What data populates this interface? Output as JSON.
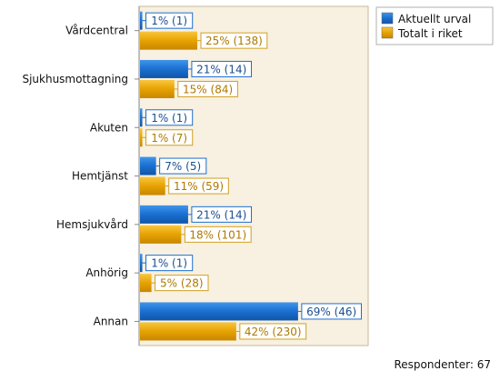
{
  "chart_data": {
    "type": "bar",
    "orientation": "horizontal",
    "categories": [
      "Vårdcentral",
      "Sjukhusmottagning",
      "Akuten",
      "Hemtjänst",
      "Hemsjukvård",
      "Anhörig",
      "Annan"
    ],
    "series": [
      {
        "name": "Aktuellt urval",
        "color": "#1a6fd0",
        "values": [
          1,
          21,
          1,
          7,
          21,
          1,
          69
        ],
        "labels": [
          "1% (1)",
          "21% (14)",
          "1% (1)",
          "7% (5)",
          "21% (14)",
          "1% (1)",
          "69% (46)"
        ]
      },
      {
        "name": "Totalt i riket",
        "color": "#e8a800",
        "values": [
          25,
          15,
          1,
          11,
          18,
          5,
          42
        ],
        "labels": [
          "25% (138)",
          "15% (84)",
          "1% (7)",
          "11% (59)",
          "18% (101)",
          "5% (28)",
          "42% (230)"
        ]
      }
    ],
    "xlim": [
      0,
      100
    ],
    "unit": "%",
    "legend_position": "top-right",
    "grid": false
  },
  "footer": {
    "respondents": "Respondenter: 67"
  },
  "colors": {
    "plot_bg": "#f8f0e0",
    "plot_border": "#c8b89a",
    "blue_label_border": "#1a6fd0",
    "gold_label_border": "#d0a020"
  }
}
